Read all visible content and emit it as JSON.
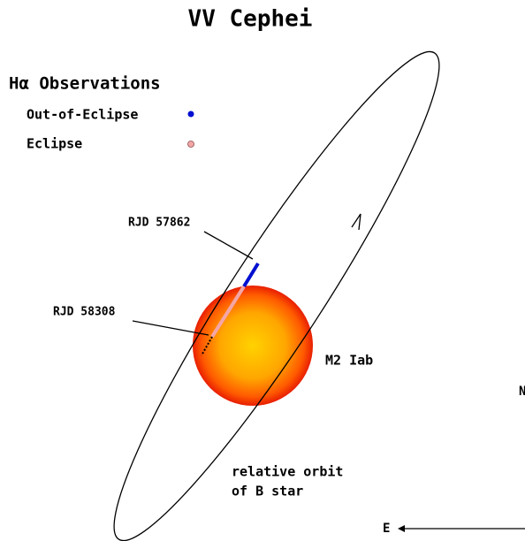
{
  "title": "VV Cephei",
  "legend": {
    "title": "Hα Observations",
    "items": [
      {
        "label": "Out-of-Eclipse"
      },
      {
        "label": "Eclipse"
      }
    ]
  },
  "annotations": {
    "rjd_1": "RJD 57862",
    "rjd_2": "RJD 58308",
    "star": "M2 Iab",
    "orbit_1": "relative orbit",
    "orbit_2": "of B star",
    "north": "N",
    "east": "E"
  }
}
